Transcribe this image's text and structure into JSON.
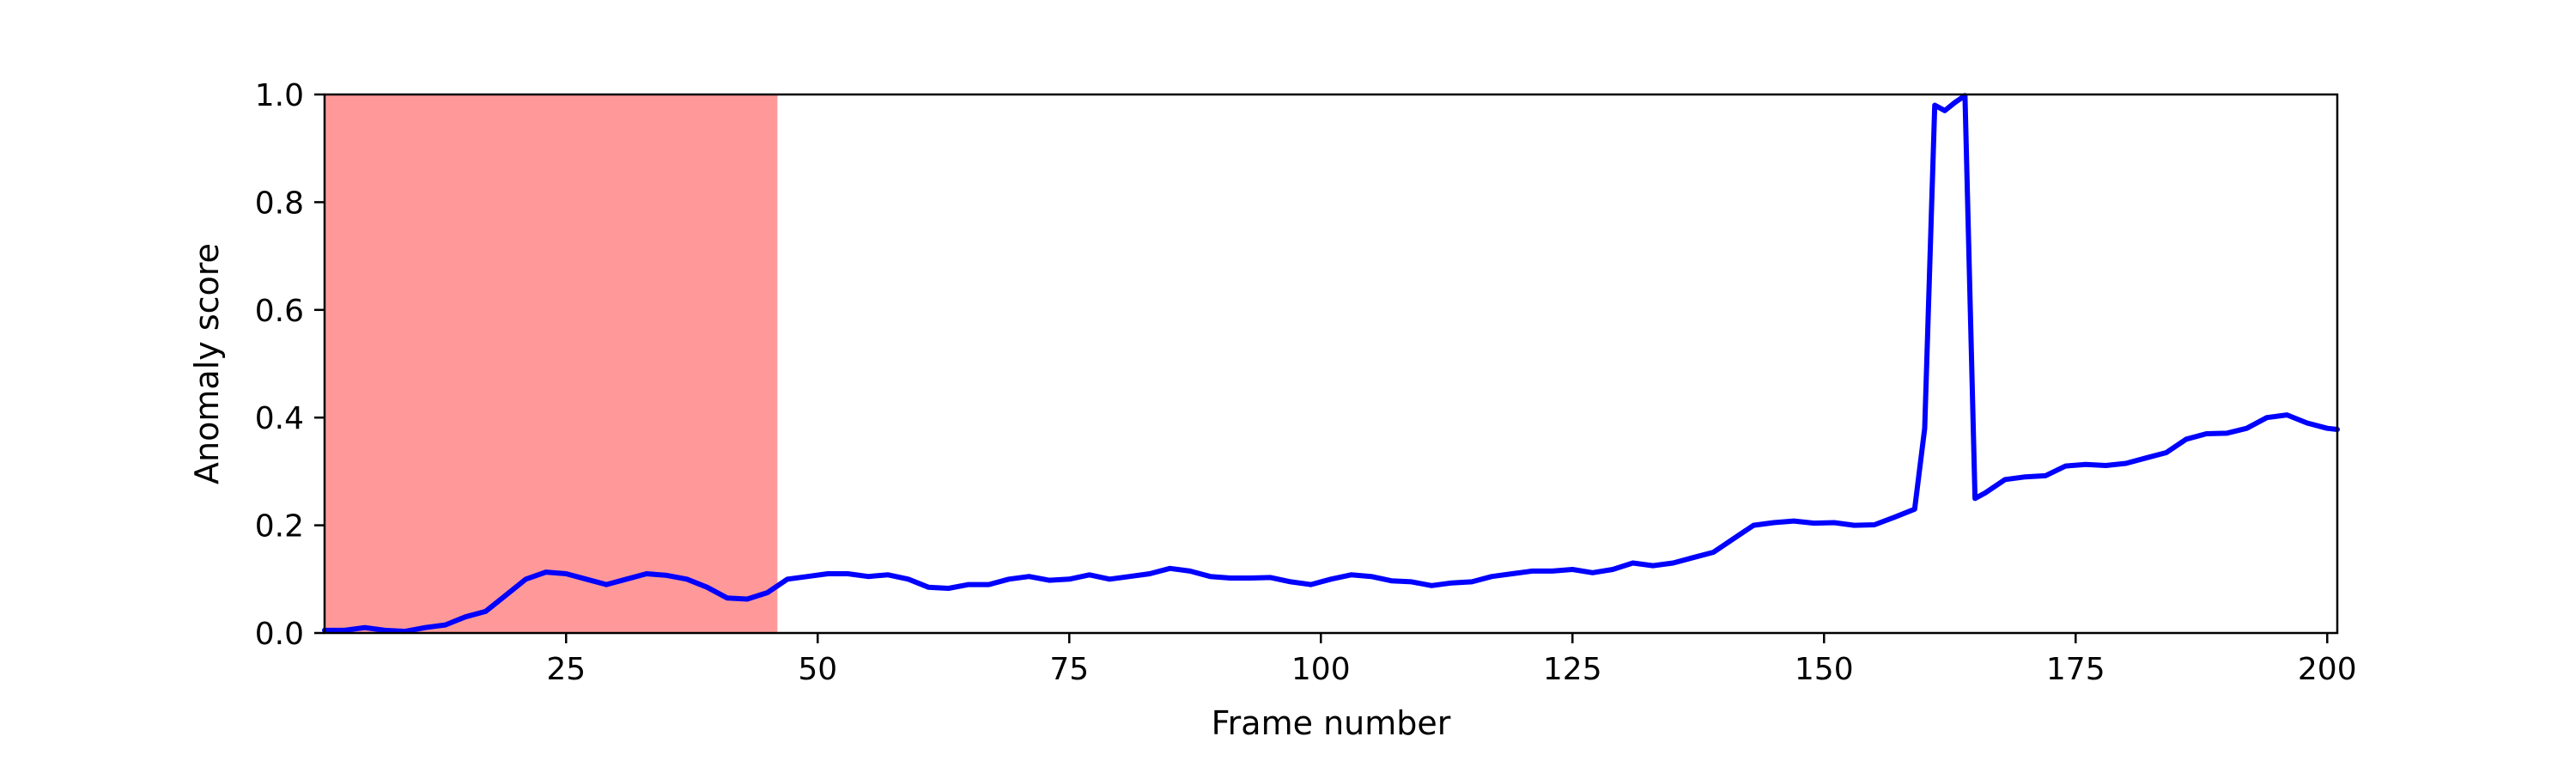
{
  "chart_data": {
    "type": "line",
    "title": "",
    "xlabel": "Frame number",
    "ylabel": "Anomaly score",
    "xlim": [
      1,
      201
    ],
    "ylim": [
      0,
      1.0
    ],
    "grid": false,
    "x_ticks": [
      25,
      50,
      75,
      100,
      125,
      150,
      175,
      200
    ],
    "y_ticks": [
      0.0,
      0.2,
      0.4,
      0.6,
      0.8,
      1.0
    ],
    "y_tick_labels": [
      "0.0",
      "0.2",
      "0.4",
      "0.6",
      "0.8",
      "1.0"
    ],
    "shaded_regions": [
      {
        "x_start": 1,
        "x_end": 46,
        "color": "#ff9999"
      }
    ],
    "series": [
      {
        "color": "#0000ff",
        "points": [
          [
            1,
            0.005
          ],
          [
            3,
            0.005
          ],
          [
            5,
            0.01
          ],
          [
            7,
            0.005
          ],
          [
            9,
            0.003
          ],
          [
            11,
            0.01
          ],
          [
            13,
            0.015
          ],
          [
            15,
            0.03
          ],
          [
            17,
            0.04
          ],
          [
            19,
            0.07
          ],
          [
            21,
            0.1
          ],
          [
            23,
            0.113
          ],
          [
            25,
            0.11
          ],
          [
            27,
            0.1
          ],
          [
            29,
            0.09
          ],
          [
            31,
            0.1
          ],
          [
            33,
            0.11
          ],
          [
            35,
            0.107
          ],
          [
            37,
            0.1
          ],
          [
            39,
            0.085
          ],
          [
            41,
            0.065
          ],
          [
            43,
            0.063
          ],
          [
            45,
            0.075
          ],
          [
            47,
            0.1
          ],
          [
            49,
            0.105
          ],
          [
            51,
            0.11
          ],
          [
            53,
            0.11
          ],
          [
            55,
            0.105
          ],
          [
            57,
            0.108
          ],
          [
            59,
            0.1
          ],
          [
            61,
            0.085
          ],
          [
            63,
            0.083
          ],
          [
            65,
            0.09
          ],
          [
            67,
            0.09
          ],
          [
            69,
            0.1
          ],
          [
            71,
            0.105
          ],
          [
            73,
            0.098
          ],
          [
            75,
            0.1
          ],
          [
            77,
            0.108
          ],
          [
            79,
            0.1
          ],
          [
            81,
            0.105
          ],
          [
            83,
            0.11
          ],
          [
            85,
            0.12
          ],
          [
            87,
            0.115
          ],
          [
            89,
            0.105
          ],
          [
            91,
            0.102
          ],
          [
            93,
            0.102
          ],
          [
            95,
            0.103
          ],
          [
            97,
            0.095
          ],
          [
            99,
            0.09
          ],
          [
            101,
            0.1
          ],
          [
            103,
            0.108
          ],
          [
            105,
            0.105
          ],
          [
            107,
            0.097
          ],
          [
            109,
            0.095
          ],
          [
            111,
            0.088
          ],
          [
            113,
            0.093
          ],
          [
            115,
            0.095
          ],
          [
            117,
            0.105
          ],
          [
            119,
            0.11
          ],
          [
            121,
            0.115
          ],
          [
            123,
            0.115
          ],
          [
            125,
            0.118
          ],
          [
            127,
            0.112
          ],
          [
            129,
            0.118
          ],
          [
            131,
            0.13
          ],
          [
            133,
            0.125
          ],
          [
            135,
            0.13
          ],
          [
            137,
            0.14
          ],
          [
            139,
            0.15
          ],
          [
            141,
            0.175
          ],
          [
            143,
            0.2
          ],
          [
            145,
            0.205
          ],
          [
            147,
            0.208
          ],
          [
            149,
            0.204
          ],
          [
            151,
            0.205
          ],
          [
            153,
            0.2
          ],
          [
            155,
            0.201
          ],
          [
            157,
            0.215
          ],
          [
            159,
            0.23
          ],
          [
            160,
            0.38
          ],
          [
            161,
            0.98
          ],
          [
            162,
            0.97
          ],
          [
            163,
            0.985
          ],
          [
            164,
            0.998
          ],
          [
            165,
            0.25
          ],
          [
            166,
            0.26
          ],
          [
            168,
            0.285
          ],
          [
            170,
            0.29
          ],
          [
            172,
            0.292
          ],
          [
            174,
            0.31
          ],
          [
            176,
            0.313
          ],
          [
            178,
            0.311
          ],
          [
            180,
            0.315
          ],
          [
            182,
            0.325
          ],
          [
            184,
            0.335
          ],
          [
            186,
            0.36
          ],
          [
            188,
            0.37
          ],
          [
            190,
            0.371
          ],
          [
            192,
            0.38
          ],
          [
            194,
            0.4
          ],
          [
            196,
            0.405
          ],
          [
            198,
            0.39
          ],
          [
            200,
            0.38
          ],
          [
            201,
            0.378
          ]
        ]
      }
    ]
  }
}
